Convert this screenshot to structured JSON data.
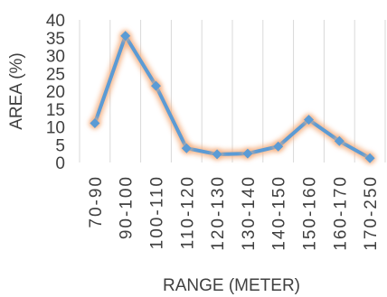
{
  "chart_data": {
    "type": "line",
    "title": "",
    "xlabel": "RANGE (METER)",
    "ylabel": "AREA (%)",
    "ylim": [
      0,
      40
    ],
    "yticks": [
      0,
      5,
      10,
      15,
      20,
      25,
      30,
      35,
      40
    ],
    "grid": "vertical",
    "categories": [
      "70-90",
      "90-100",
      "100-110",
      "110-120",
      "120-130",
      "130-140",
      "140-150",
      "150-160",
      "160-170",
      "170-250"
    ],
    "series": [
      {
        "values": [
          11,
          35.5,
          21.5,
          4,
          2.3,
          2.5,
          4.5,
          12,
          6,
          1.2
        ],
        "color": "#5b9bd5",
        "glow_color": "#f4b183"
      }
    ]
  }
}
